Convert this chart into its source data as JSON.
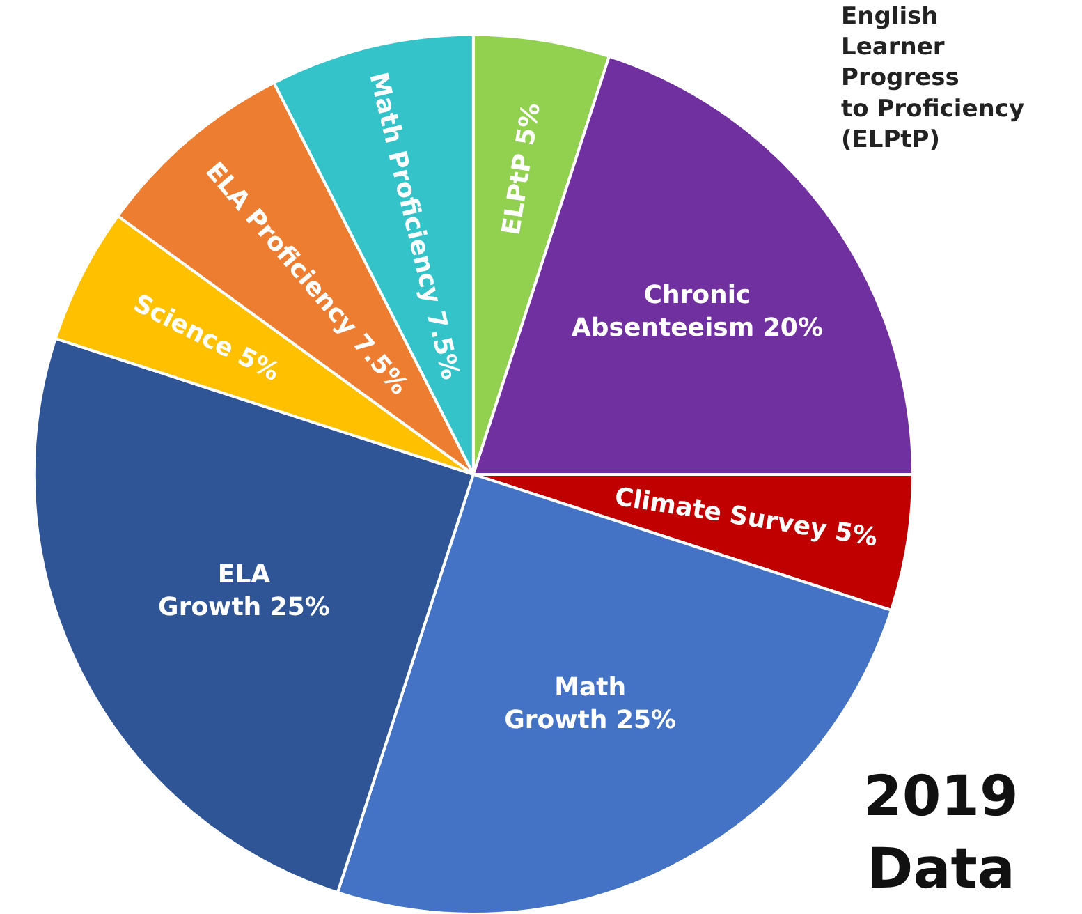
{
  "chart_data": {
    "type": "pie",
    "categories": [
      "ELPtP",
      "Chronic\nAbsenteeism",
      "Climate Survey",
      "Math\nGrowth",
      "ELA\nGrowth",
      "Science",
      "ELA Proficiency",
      "Math Proficiency"
    ],
    "values": [
      5,
      20,
      5,
      25,
      25,
      5,
      7.5,
      7.5
    ],
    "value_labels": [
      "5%",
      "20%",
      "5%",
      "25%",
      "25%",
      "5%",
      "7.5%",
      "7.5%"
    ],
    "colors": [
      "#92d050",
      "#7030a0",
      "#c00000",
      "#4472c4",
      "#2f5597",
      "#ffc000",
      "#ed7d31",
      "#33c3c9"
    ],
    "legend": false,
    "annotations": [
      "English\nLearner\nProgress\nto Proficiency\n(ELPtP)",
      "2019\nData"
    ]
  }
}
